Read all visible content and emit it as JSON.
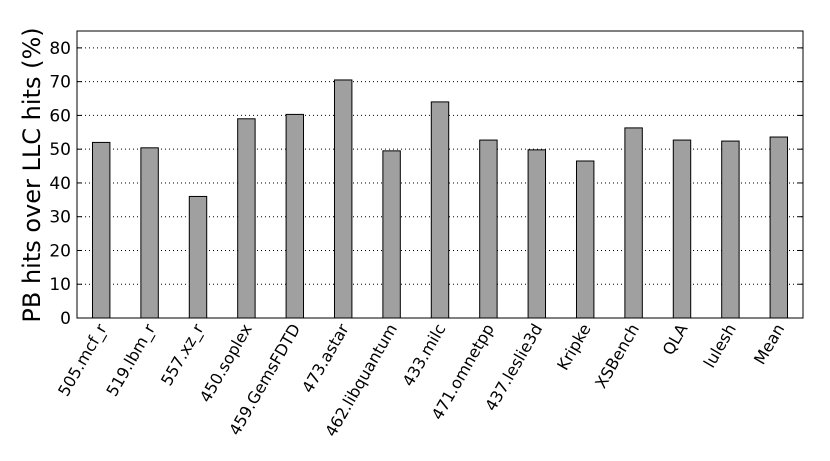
{
  "chart_data": {
    "type": "bar",
    "y_label": "PB hits over LLC hits (%)",
    "categories": [
      "505.mcf_r",
      "519.lbm_r",
      "557.xz_r",
      "450.soplex",
      "459.GemsFDTD",
      "473.astar",
      "462.libquantum",
      "433.milc",
      "471.omnetpp",
      "437.leslie3d",
      "Kripke",
      "XSBench",
      "QLA",
      "lulesh",
      "Mean"
    ],
    "values": [
      52,
      50.4,
      36,
      59,
      60.3,
      70.5,
      49.5,
      64,
      52.7,
      49.8,
      46.5,
      56.3,
      52.7,
      52.4,
      53.6
    ],
    "color": "#a0a0a0",
    "ylim": [
      0,
      85
    ],
    "yticks": [
      0,
      10,
      20,
      30,
      40,
      50,
      60,
      70,
      80
    ],
    "grid": true
  }
}
